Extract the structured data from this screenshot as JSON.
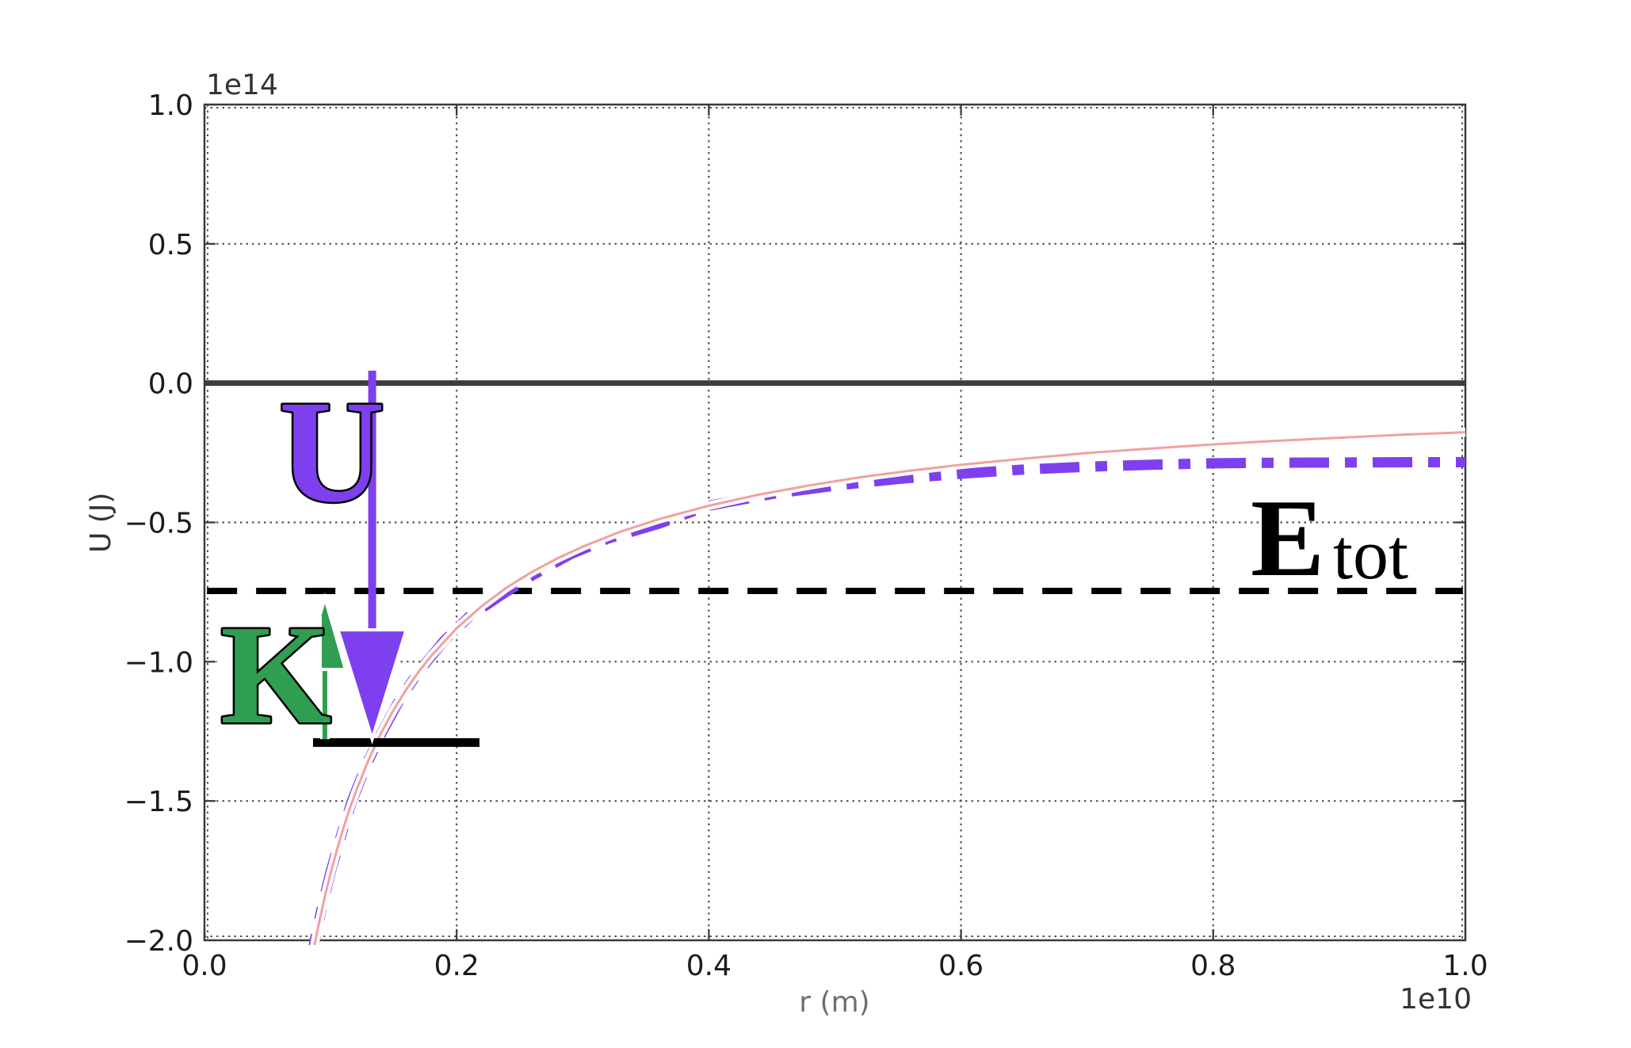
{
  "figure": {
    "background": "#ffffff",
    "axis_color": "#3a3a3a",
    "grid_color": "#444444",
    "tick_label_color": "#1c1c1c"
  },
  "chart_data": {
    "type": "line",
    "title": "",
    "xlabel": "r (m)",
    "ylabel": "U (J)",
    "x_scale_label": "1e10",
    "y_scale_label": "1e14",
    "xlim": [
      0.0,
      1.0
    ],
    "ylim": [
      -2.0,
      1.0
    ],
    "grid": "dotted-major",
    "legend": "none",
    "x_tick_values": [
      0.0,
      0.2,
      0.4,
      0.6,
      0.8,
      1.0
    ],
    "x_tick_labels": [
      "0.0",
      "0.2",
      "0.4",
      "0.6",
      "0.8",
      "1.0"
    ],
    "y_tick_values": [
      1.0,
      0.5,
      0.0,
      -0.5,
      -1.0,
      -1.5,
      -2.0
    ],
    "y_tick_labels": [
      "1.0",
      "0.5",
      "0.0",
      "−0.5",
      "−1.0",
      "−1.5",
      "−2.0"
    ],
    "series": [
      {
        "name": "potential-curve-red",
        "label": "gravitational potential U(r) = -GMm/r (thin red line)",
        "color": "#f2a0a0",
        "style": "solid",
        "width": 3,
        "halo": "#ffffff",
        "halo_width": 11,
        "points": [
          [
            0.082,
            -2.146
          ],
          [
            0.085,
            -2.071
          ],
          [
            0.088,
            -2.0
          ],
          [
            0.092,
            -1.913
          ],
          [
            0.096,
            -1.833
          ],
          [
            0.1,
            -1.76
          ],
          [
            0.105,
            -1.676
          ],
          [
            0.11,
            -1.6
          ],
          [
            0.115,
            -1.53
          ],
          [
            0.12,
            -1.467
          ],
          [
            0.13,
            -1.354
          ],
          [
            0.14,
            -1.257
          ],
          [
            0.15,
            -1.173
          ],
          [
            0.16,
            -1.1
          ],
          [
            0.17,
            -1.035
          ],
          [
            0.18,
            -0.978
          ],
          [
            0.2,
            -0.88
          ],
          [
            0.22,
            -0.8
          ],
          [
            0.24,
            -0.733
          ],
          [
            0.26,
            -0.677
          ],
          [
            0.28,
            -0.629
          ],
          [
            0.3,
            -0.587
          ],
          [
            0.33,
            -0.533
          ],
          [
            0.36,
            -0.489
          ],
          [
            0.4,
            -0.44
          ],
          [
            0.44,
            -0.4
          ],
          [
            0.48,
            -0.367
          ],
          [
            0.52,
            -0.338
          ],
          [
            0.56,
            -0.314
          ],
          [
            0.6,
            -0.293
          ],
          [
            0.65,
            -0.271
          ],
          [
            0.7,
            -0.251
          ],
          [
            0.75,
            -0.235
          ],
          [
            0.8,
            -0.22
          ],
          [
            0.85,
            -0.207
          ],
          [
            0.9,
            -0.196
          ],
          [
            0.95,
            -0.185
          ],
          [
            1.0,
            -0.176
          ]
        ]
      },
      {
        "name": "potential-curve-purple",
        "label": "potential energy curve (thick purple dash-dot)",
        "color": "#7e40ee",
        "style": "dash-dot",
        "width": 13,
        "points": [
          [
            0.082,
            -2.12
          ],
          [
            0.0875,
            -2.0
          ],
          [
            0.093,
            -1.885
          ],
          [
            0.1,
            -1.755
          ],
          [
            0.108,
            -1.63
          ],
          [
            0.117,
            -1.5
          ],
          [
            0.1285,
            -1.37
          ],
          [
            0.14,
            -1.26
          ],
          [
            0.155,
            -1.135
          ],
          [
            0.17,
            -1.035
          ],
          [
            0.19,
            -0.925
          ],
          [
            0.21,
            -0.838
          ],
          [
            0.235,
            -0.762
          ],
          [
            0.26,
            -0.69
          ],
          [
            0.29,
            -0.615
          ],
          [
            0.32,
            -0.558
          ],
          [
            0.36,
            -0.505
          ],
          [
            0.4,
            -0.44
          ],
          [
            0.45,
            -0.398
          ],
          [
            0.5,
            -0.368
          ],
          [
            0.55,
            -0.344
          ],
          [
            0.6,
            -0.325
          ],
          [
            0.65,
            -0.31
          ],
          [
            0.7,
            -0.3
          ],
          [
            0.75,
            -0.293
          ],
          [
            0.8,
            -0.288
          ],
          [
            0.85,
            -0.286
          ],
          [
            0.9,
            -0.285
          ],
          [
            0.95,
            -0.284
          ],
          [
            1.0,
            -0.284
          ]
        ]
      }
    ],
    "reference_lines": [
      {
        "name": "zero-energy-line",
        "y": 0.0,
        "x1": 0.0,
        "x2": 1.0,
        "color": "#3d3d3d",
        "style": "solid",
        "width": 7,
        "layer": "back"
      },
      {
        "name": "total-energy-line",
        "y": -0.746,
        "x1": 0.002,
        "x2": 0.998,
        "color": "#000000",
        "style": "dashed",
        "width": 8,
        "layer": "back"
      },
      {
        "name": "energy-level-segment",
        "y": -1.29,
        "x1": 0.0861,
        "x2": 0.2181,
        "color": "#000000",
        "style": "solid",
        "width": 11,
        "layer": "front"
      }
    ],
    "arrows": [
      {
        "name": "u-arrow",
        "label": "potential energy magnitude",
        "color": "#7e40ee",
        "x": 0.133,
        "y_from": 0.045,
        "y_to": -1.278,
        "width": 10,
        "head_w": 86,
        "head_l": 138,
        "line_halo": false,
        "outline": "#ffffff"
      },
      {
        "name": "k-arrow",
        "label": "kinetic energy magnitude",
        "color": "#2f9e50",
        "x": 0.0955,
        "y_from": -1.278,
        "y_to": -0.772,
        "width": 6,
        "head_w": 52,
        "head_l": 90,
        "line_halo": true,
        "outline": "#ffffff"
      }
    ],
    "text_annotations": [
      {
        "name": "u-label",
        "text": "U",
        "color": "#7e40ee",
        "outline": "#000000"
      },
      {
        "name": "k-label",
        "text": "K",
        "color": "#2f9e50",
        "outline": "#000000"
      },
      {
        "name": "etot-label",
        "text": "E",
        "color": "#000000",
        "outline": ""
      },
      {
        "name": "etot-label-sub",
        "text": "tot",
        "color": "#000000",
        "outline": ""
      }
    ]
  }
}
